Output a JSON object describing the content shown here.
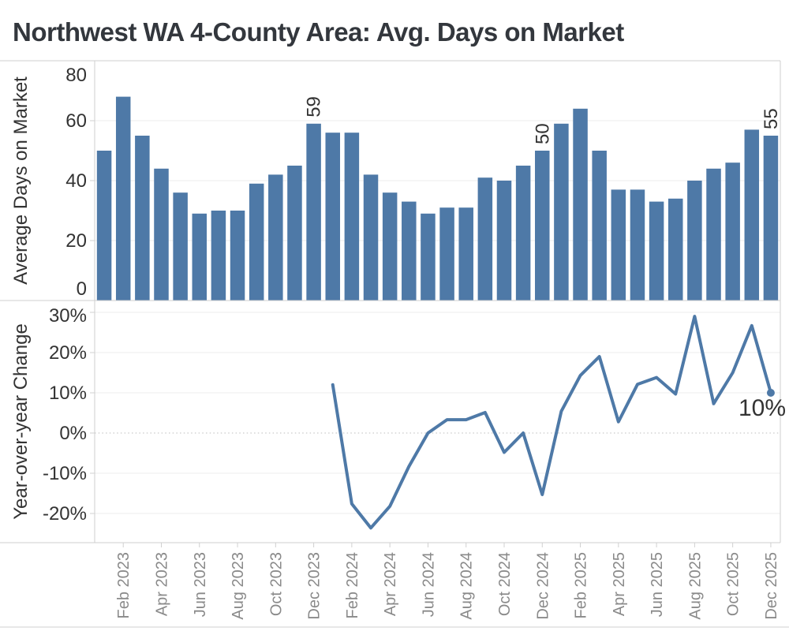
{
  "title": "Northwest WA 4-County Area: Avg. Days on Market",
  "colors": {
    "bar": "#4e79a7",
    "line": "#4e79a7",
    "grid": "#ececec",
    "zero_dotted": "#bdbdbd",
    "border": "#cfcfcf",
    "tick": "#d0d0d0",
    "y_label": "#333333",
    "month_label": "#8a8a8a",
    "annotation": "#333333",
    "title": "#33373d"
  },
  "bar_chart": {
    "y_axis_title": "Average Days on Market",
    "y_tick_labels": [
      "80",
      "60",
      "40",
      "20",
      "0"
    ]
  },
  "line_chart": {
    "y_axis_title": "Year-over-year Change",
    "y_tick_labels": [
      "30%",
      "20%",
      "10%",
      "0%",
      "-10%",
      "-20%"
    ],
    "end_annotation": "10%"
  },
  "x_axis_tick_labels": [
    "Feb 2023",
    "Apr 2023",
    "Jun 2023",
    "Aug 2023",
    "Oct 2023",
    "Dec 2023",
    "Feb 2024",
    "Apr 2024",
    "Jun 2024",
    "Aug 2024",
    "Oct 2024",
    "Dec 2024",
    "Feb 2025",
    "Apr 2025",
    "Jun 2025",
    "Aug 2025",
    "Oct 2025",
    "Dec 2025"
  ],
  "chart_data": [
    {
      "type": "bar",
      "title": "Northwest WA 4-County Area: Avg. Days on Market",
      "ylabel": "Average Days on Market",
      "ylim": [
        0,
        80
      ],
      "yticks": [
        80,
        60,
        40,
        20,
        0
      ],
      "grid": "horizontal",
      "categories": [
        "Jan 2023",
        "Feb 2023",
        "Mar 2023",
        "Apr 2023",
        "May 2023",
        "Jun 2023",
        "Jul 2023",
        "Aug 2023",
        "Sep 2023",
        "Oct 2023",
        "Nov 2023",
        "Dec 2023",
        "Jan 2024",
        "Feb 2024",
        "Mar 2024",
        "Apr 2024",
        "May 2024",
        "Jun 2024",
        "Jul 2024",
        "Aug 2024",
        "Sep 2024",
        "Oct 2024",
        "Nov 2024",
        "Dec 2024",
        "Jan 2025",
        "Feb 2025",
        "Mar 2025",
        "Apr 2025",
        "May 2025",
        "Jun 2025",
        "Jul 2025",
        "Aug 2025",
        "Sep 2025",
        "Oct 2025",
        "Nov 2025",
        "Dec 2025"
      ],
      "values": [
        50,
        68,
        55,
        44,
        36,
        29,
        30,
        30,
        39,
        42,
        45,
        59,
        56,
        56,
        42,
        36,
        33,
        29,
        31,
        31,
        41,
        40,
        45,
        50,
        59,
        64,
        50,
        37,
        37,
        33,
        34,
        40,
        44,
        46,
        57,
        55
      ],
      "annotations": [
        {
          "category": "Dec 2023",
          "label": "59"
        },
        {
          "category": "Dec 2024",
          "label": "50"
        },
        {
          "category": "Dec 2025",
          "label": "55"
        }
      ]
    },
    {
      "type": "line",
      "ylabel": "Year-over-year Change",
      "ylim_pct": [
        -27.5,
        33
      ],
      "yticks_pct": [
        30,
        20,
        10,
        0,
        -10,
        -20
      ],
      "ytick_labels": [
        "30%",
        "20%",
        "10%",
        "0%",
        "-10%",
        "-20%"
      ],
      "zero_line_style": "dotted",
      "x": [
        "Jan 2024",
        "Feb 2024",
        "Mar 2024",
        "Apr 2024",
        "May 2024",
        "Jun 2024",
        "Jul 2024",
        "Aug 2024",
        "Sep 2024",
        "Oct 2024",
        "Nov 2024",
        "Dec 2024",
        "Jan 2025",
        "Feb 2025",
        "Mar 2025",
        "Apr 2025",
        "May 2025",
        "Jun 2025",
        "Jul 2025",
        "Aug 2025",
        "Sep 2025",
        "Oct 2025",
        "Nov 2025",
        "Dec 2025"
      ],
      "values_pct": [
        12.0,
        -17.6,
        -23.6,
        -18.2,
        -8.3,
        0.0,
        3.3,
        3.3,
        5.1,
        -4.8,
        0.0,
        -15.3,
        5.4,
        14.3,
        19.0,
        2.8,
        12.1,
        13.8,
        9.7,
        29.0,
        7.3,
        15.0,
        26.7,
        10.0
      ],
      "end_marker": "dot",
      "end_label": "10%"
    }
  ]
}
